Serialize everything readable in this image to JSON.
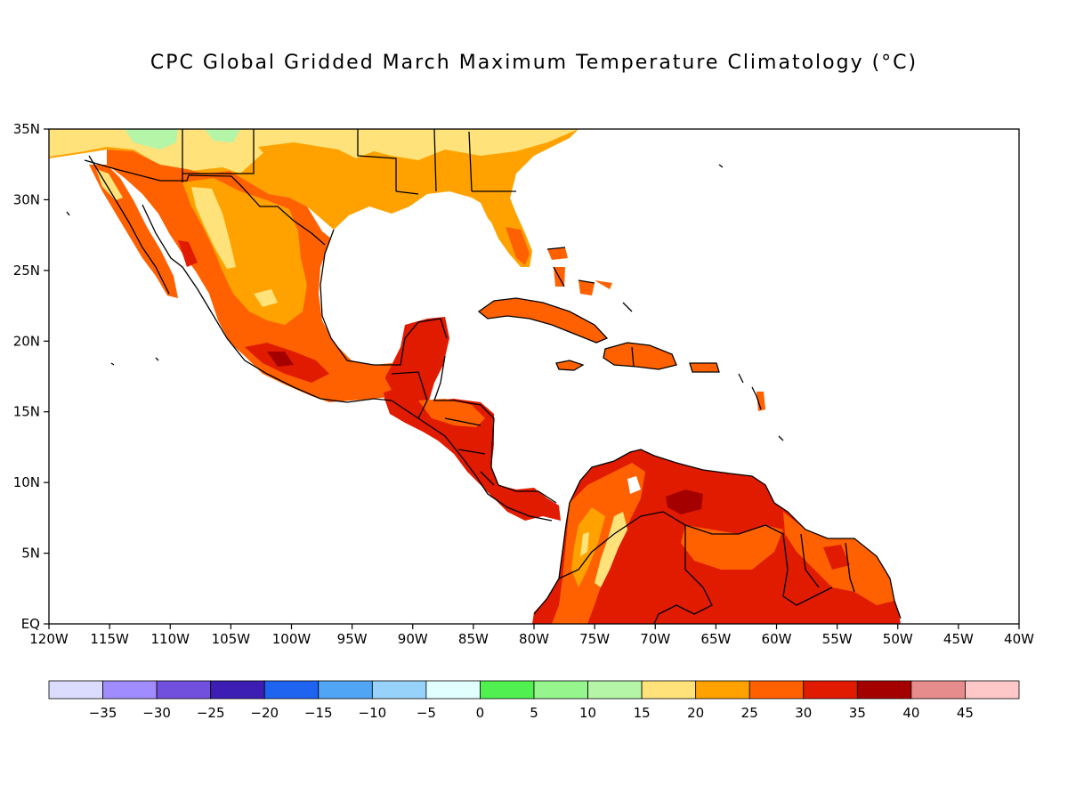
{
  "title": "CPC Global Gridded March Maximum Temperature Climatology (°C)",
  "map": {
    "region": "Central America, Mexico, Caribbean and northern South America",
    "lon_range": [
      -120,
      -40
    ],
    "lat_range": [
      0,
      35
    ],
    "lon_ticks": [
      {
        "value": -120,
        "label": "120W"
      },
      {
        "value": -115,
        "label": "115W"
      },
      {
        "value": -110,
        "label": "110W"
      },
      {
        "value": -105,
        "label": "105W"
      },
      {
        "value": -100,
        "label": "100W"
      },
      {
        "value": -95,
        "label": "95W"
      },
      {
        "value": -90,
        "label": "90W"
      },
      {
        "value": -85,
        "label": "85W"
      },
      {
        "value": -80,
        "label": "80W"
      },
      {
        "value": -75,
        "label": "75W"
      },
      {
        "value": -70,
        "label": "70W"
      },
      {
        "value": -65,
        "label": "65W"
      },
      {
        "value": -60,
        "label": "60W"
      },
      {
        "value": -55,
        "label": "55W"
      },
      {
        "value": -50,
        "label": "50W"
      },
      {
        "value": -45,
        "label": "45W"
      },
      {
        "value": -40,
        "label": "40W"
      }
    ],
    "lat_ticks": [
      {
        "value": 35,
        "label": "35N"
      },
      {
        "value": 30,
        "label": "30N"
      },
      {
        "value": 25,
        "label": "25N"
      },
      {
        "value": 20,
        "label": "20N"
      },
      {
        "value": 15,
        "label": "15N"
      },
      {
        "value": 10,
        "label": "10N"
      },
      {
        "value": 5,
        "label": "5N"
      },
      {
        "value": 0,
        "label": "EQ"
      }
    ],
    "colors": {
      "10-15": "#b4f5a8",
      "15-20": "#ffe27a",
      "20-25": "#ffa200",
      "25-30": "#ff6100",
      "30-35": "#e01b00",
      "35-40": "#a50000"
    }
  },
  "colorbar": {
    "colors": [
      "#dcdcff",
      "#a08cff",
      "#7050dc",
      "#3c1eb4",
      "#1e64f0",
      "#50a5f5",
      "#96d2fa",
      "#e1ffff",
      "#50f050",
      "#96f58c",
      "#b4f5a8",
      "#ffe27a",
      "#ffa200",
      "#ff6100",
      "#e01b00",
      "#a50000",
      "#e68c8c",
      "#ffc8c8"
    ],
    "labels": [
      "−35",
      "−30",
      "−25",
      "−20",
      "−15",
      "−10",
      "−5",
      "0",
      "5",
      "10",
      "15",
      "20",
      "25",
      "30",
      "35",
      "40",
      "45"
    ]
  }
}
